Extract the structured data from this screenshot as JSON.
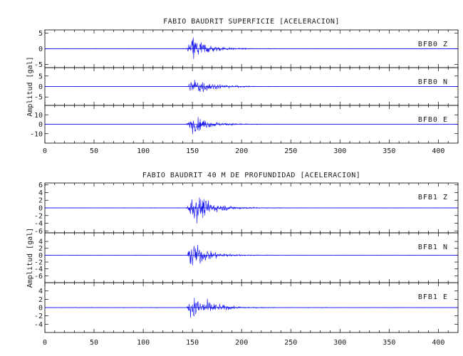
{
  "chart_data": [
    {
      "type": "line",
      "title": "FABIO BAUDRIT SUPERFICIE [ACELERACION]",
      "ylabel": "Amplitud [gal]",
      "xlabel": "",
      "xlim": [
        0,
        420
      ],
      "xticks": [
        0,
        50,
        100,
        150,
        200,
        250,
        300,
        350,
        400
      ],
      "grid": false,
      "traces": [
        {
          "name": "BFB0   Z",
          "ylim": [
            -6,
            6
          ],
          "yticks": [
            -5,
            0,
            5
          ],
          "onset": 143,
          "peak_time": 150,
          "peak_amplitude": 6.2,
          "decay_s": 15
        },
        {
          "name": "BFB0   N",
          "ylim": [
            -9,
            9
          ],
          "yticks": [
            -5,
            0,
            5
          ],
          "onset": 143,
          "peak_time": 151,
          "peak_amplitude": 7,
          "decay_s": 18
        },
        {
          "name": "BFB0   E",
          "ylim": [
            -20,
            20
          ],
          "yticks": [
            -10,
            0,
            10
          ],
          "onset": 143,
          "peak_time": 150,
          "peak_amplitude": 13,
          "decay_s": 18
        }
      ]
    },
    {
      "type": "line",
      "title": "FABIO BAUDRIT 40 M DE PROFUNDIDAD [ACELERACION]",
      "ylabel": "Amplitud [gal]",
      "xlabel": "",
      "xlim": [
        0,
        420
      ],
      "xticks": [
        0,
        50,
        100,
        150,
        200,
        250,
        300,
        350,
        400
      ],
      "grid": false,
      "traces": [
        {
          "name": "BFB1   Z",
          "ylim": [
            -6.5,
            6.5
          ],
          "yticks": [
            -6,
            -4,
            -2,
            0,
            2,
            4,
            6
          ],
          "onset": 143,
          "peak_time": 150,
          "peak_amplitude": 6,
          "decay_s": 18
        },
        {
          "name": "BFB1   N",
          "ylim": [
            -8,
            6.5
          ],
          "yticks": [
            -6,
            -4,
            -2,
            0,
            2,
            4
          ],
          "onset": 143,
          "peak_time": 150,
          "peak_amplitude": 5.5,
          "decay_s": 16
        },
        {
          "name": "BFB1   E",
          "ylim": [
            -6,
            6
          ],
          "yticks": [
            -4,
            -2,
            0,
            2,
            4
          ],
          "onset": 143,
          "peak_time": 151,
          "peak_amplitude": 5.5,
          "decay_s": 16
        }
      ]
    }
  ]
}
